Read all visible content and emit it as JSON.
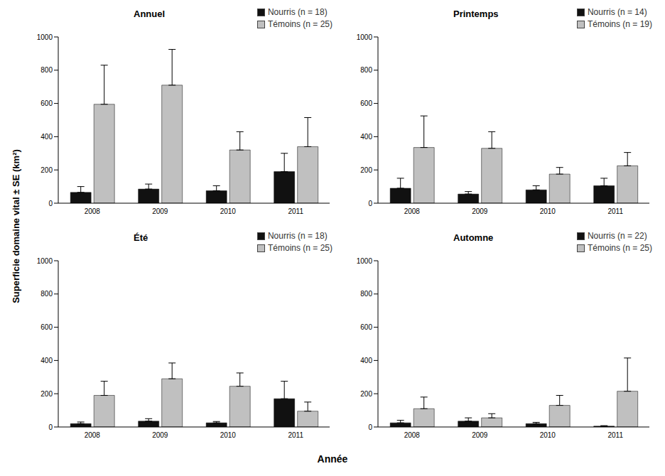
{
  "chart_data": [
    {
      "type": "bar",
      "title": "Annuel",
      "categories": [
        "2008",
        "2009",
        "2010",
        "2011"
      ],
      "ylim": [
        0,
        1000
      ],
      "yticks": [
        0,
        200,
        400,
        600,
        800,
        1000
      ],
      "grid": false,
      "legend": "top right",
      "series": [
        {
          "name": "Nourris (n = 18)",
          "color": "#111111",
          "values": [
            65,
            85,
            75,
            190
          ],
          "errors": [
            35,
            30,
            30,
            110
          ]
        },
        {
          "name": "Témoins (n = 25)",
          "color": "#c0c0c0",
          "values": [
            595,
            710,
            320,
            340
          ],
          "errors": [
            235,
            215,
            110,
            175
          ]
        }
      ]
    },
    {
      "type": "bar",
      "title": "Printemps",
      "categories": [
        "2008",
        "2009",
        "2010",
        "2011"
      ],
      "ylim": [
        0,
        1000
      ],
      "yticks": [
        0,
        200,
        400,
        600,
        800,
        1000
      ],
      "grid": false,
      "legend": "top right",
      "series": [
        {
          "name": "Nourris (n = 14)",
          "color": "#111111",
          "values": [
            90,
            55,
            80,
            105
          ],
          "errors": [
            60,
            15,
            25,
            45
          ]
        },
        {
          "name": "Témoins (n = 19)",
          "color": "#c0c0c0",
          "values": [
            335,
            330,
            175,
            225
          ],
          "errors": [
            190,
            100,
            40,
            80
          ]
        }
      ]
    },
    {
      "type": "bar",
      "title": "Été",
      "categories": [
        "2008",
        "2009",
        "2010",
        "2011"
      ],
      "ylim": [
        0,
        1000
      ],
      "yticks": [
        0,
        200,
        400,
        600,
        800,
        1000
      ],
      "grid": false,
      "legend": "top right",
      "series": [
        {
          "name": "Nourris (n = 18)",
          "color": "#111111",
          "values": [
            20,
            35,
            25,
            170
          ],
          "errors": [
            10,
            15,
            8,
            105
          ]
        },
        {
          "name": "Témoins (n = 25)",
          "color": "#c0c0c0",
          "values": [
            190,
            290,
            245,
            95
          ],
          "errors": [
            85,
            95,
            80,
            55
          ]
        }
      ]
    },
    {
      "type": "bar",
      "title": "Automne",
      "categories": [
        "2008",
        "2009",
        "2010",
        "2011"
      ],
      "ylim": [
        0,
        1000
      ],
      "yticks": [
        0,
        200,
        400,
        600,
        800,
        1000
      ],
      "grid": false,
      "legend": "top right",
      "series": [
        {
          "name": "Nourris (n = 22)",
          "color": "#111111",
          "values": [
            25,
            35,
            20,
            5
          ],
          "errors": [
            15,
            20,
            8,
            3
          ]
        },
        {
          "name": "Témoins (n = 25)",
          "color": "#c0c0c0",
          "values": [
            110,
            55,
            130,
            215
          ],
          "errors": [
            70,
            25,
            60,
            200
          ]
        }
      ]
    }
  ],
  "y_label": "Superficie domaine vital ± SE (km²)",
  "x_label": "Année"
}
